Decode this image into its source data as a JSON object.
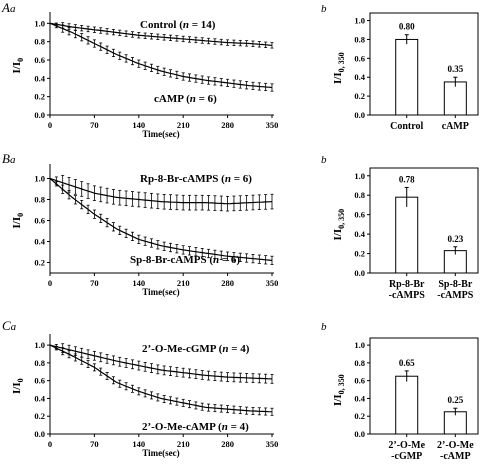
{
  "chart_data": [
    {
      "panel": "A",
      "sub": "a",
      "type": "line",
      "ylabel_main": "I/I",
      "ylabel_sub": "0",
      "xlabel": "Time(sec)",
      "xticks": [
        "0",
        "70",
        "140",
        "210",
        "280",
        "350"
      ],
      "yticks": [
        "0.0",
        "0.2",
        "0.4",
        "0.6",
        "0.8",
        "1.0"
      ],
      "xlim": [
        0,
        350
      ],
      "ylim": [
        0,
        1.08
      ],
      "series": [
        {
          "name": "Control",
          "n_label": "n",
          "n_value": "= 14",
          "n_close": ")",
          "points": [
            [
              0,
              1.0
            ],
            [
              35,
              0.96
            ],
            [
              70,
              0.93
            ],
            [
              105,
              0.9
            ],
            [
              140,
              0.87
            ],
            [
              175,
              0.85
            ],
            [
              210,
              0.83
            ],
            [
              245,
              0.81
            ],
            [
              280,
              0.79
            ],
            [
              315,
              0.78
            ],
            [
              350,
              0.76
            ]
          ],
          "err": 0.03
        },
        {
          "name": "cAMP",
          "n_label": "n",
          "n_value": "= 6",
          "n_close": ")",
          "points": [
            [
              0,
              1.0
            ],
            [
              35,
              0.9
            ],
            [
              70,
              0.78
            ],
            [
              105,
              0.66
            ],
            [
              140,
              0.56
            ],
            [
              175,
              0.48
            ],
            [
              210,
              0.42
            ],
            [
              245,
              0.38
            ],
            [
              280,
              0.35
            ],
            [
              315,
              0.32
            ],
            [
              350,
              0.3
            ]
          ],
          "err": 0.04
        }
      ]
    },
    {
      "panel": "A",
      "sub": "b",
      "type": "bar",
      "ylabel_main": "I/I",
      "ylabel_sub": "0, 350",
      "yticks": [
        "0.0",
        "0.2",
        "0.4",
        "0.6",
        "0.8",
        "1.0"
      ],
      "ylim": [
        0,
        1.08
      ],
      "categories": [
        [
          "Control"
        ],
        [
          "cAMP"
        ]
      ],
      "values": [
        0.8,
        0.35
      ],
      "errors": [
        0.05,
        0.05
      ],
      "value_labels": [
        "0.80",
        "0.35"
      ]
    },
    {
      "panel": "B",
      "sub": "a",
      "type": "line",
      "ylabel_main": "I/I",
      "ylabel_sub": "0",
      "xlabel": "Time(sec)",
      "xticks": [
        "0",
        "70",
        "140",
        "210",
        "280",
        "350"
      ],
      "yticks": [
        "0.2",
        "0.4",
        "0.6",
        "0.8",
        "1.0"
      ],
      "xlim": [
        0,
        350
      ],
      "ylim": [
        0.1,
        1.1
      ],
      "series": [
        {
          "name": "Rp-8-Br-cAMPS",
          "n_label": "n",
          "n_value": "= 6",
          "n_close": ")",
          "points": [
            [
              0,
              1.0
            ],
            [
              35,
              0.93
            ],
            [
              70,
              0.86
            ],
            [
              105,
              0.82
            ],
            [
              140,
              0.8
            ],
            [
              175,
              0.78
            ],
            [
              210,
              0.77
            ],
            [
              245,
              0.77
            ],
            [
              280,
              0.76
            ],
            [
              315,
              0.77
            ],
            [
              350,
              0.78
            ]
          ],
          "err": 0.07
        },
        {
          "name": "Sp-8-Br-cAMPS",
          "n_label": "n",
          "n_value": "= 6",
          "n_close": ")",
          "points": [
            [
              0,
              1.0
            ],
            [
              35,
              0.82
            ],
            [
              70,
              0.66
            ],
            [
              105,
              0.52
            ],
            [
              140,
              0.42
            ],
            [
              175,
              0.36
            ],
            [
              210,
              0.32
            ],
            [
              245,
              0.29
            ],
            [
              280,
              0.26
            ],
            [
              315,
              0.24
            ],
            [
              350,
              0.22
            ]
          ],
          "err": 0.04
        }
      ]
    },
    {
      "panel": "B",
      "sub": "b",
      "type": "bar",
      "ylabel_main": "I/I",
      "ylabel_sub": "0, 350",
      "yticks": [
        "0.0",
        "0.2",
        "0.4",
        "0.6",
        "0.8",
        "1.0"
      ],
      "ylim": [
        0,
        1.08
      ],
      "categories": [
        [
          "Rp-8-Br",
          "-cAMPS"
        ],
        [
          "Sp-8-Br",
          "-cAMPS"
        ]
      ],
      "values": [
        0.78,
        0.23
      ],
      "errors": [
        0.1,
        0.04
      ],
      "value_labels": [
        "0.78",
        "0.23"
      ]
    },
    {
      "panel": "C",
      "sub": "a",
      "type": "line",
      "ylabel_main": "I/I",
      "ylabel_sub": "0",
      "xlabel": "Time(sec)",
      "xticks": [
        "0",
        "70",
        "140",
        "210",
        "280",
        "350"
      ],
      "yticks": [
        "0.0",
        "0.2",
        "0.4",
        "0.6",
        "0.8",
        "1.0"
      ],
      "xlim": [
        0,
        350
      ],
      "ylim": [
        0,
        1.08
      ],
      "series": [
        {
          "name": "2’-O-Me-cGMP",
          "n_label": "n",
          "n_value": "= 4",
          "n_close": ")",
          "points": [
            [
              0,
              1.0
            ],
            [
              35,
              0.94
            ],
            [
              70,
              0.88
            ],
            [
              105,
              0.82
            ],
            [
              140,
              0.77
            ],
            [
              175,
              0.72
            ],
            [
              210,
              0.69
            ],
            [
              245,
              0.66
            ],
            [
              280,
              0.64
            ],
            [
              315,
              0.63
            ],
            [
              350,
              0.62
            ]
          ],
          "err": 0.05
        },
        {
          "name": "2’-O-Me-cAMP",
          "n_label": "n",
          "n_value": "= 4",
          "n_close": ")",
          "points": [
            [
              0,
              1.0
            ],
            [
              35,
              0.88
            ],
            [
              70,
              0.75
            ],
            [
              105,
              0.58
            ],
            [
              140,
              0.48
            ],
            [
              175,
              0.4
            ],
            [
              210,
              0.35
            ],
            [
              245,
              0.3
            ],
            [
              280,
              0.28
            ],
            [
              315,
              0.26
            ],
            [
              350,
              0.25
            ]
          ],
          "err": 0.04
        }
      ]
    },
    {
      "panel": "C",
      "sub": "b",
      "type": "bar",
      "ylabel_main": "I/I",
      "ylabel_sub": "0, 350",
      "yticks": [
        "0.0",
        "0.2",
        "0.4",
        "0.6",
        "0.8",
        "1.0"
      ],
      "ylim": [
        0,
        1.08
      ],
      "categories": [
        [
          "2’-O-Me",
          "-cGMP"
        ],
        [
          "2’-O-Me",
          "-cAMP"
        ]
      ],
      "values": [
        0.65,
        0.25
      ],
      "errors": [
        0.06,
        0.04
      ],
      "value_labels": [
        "0.65",
        "0.25"
      ]
    }
  ]
}
